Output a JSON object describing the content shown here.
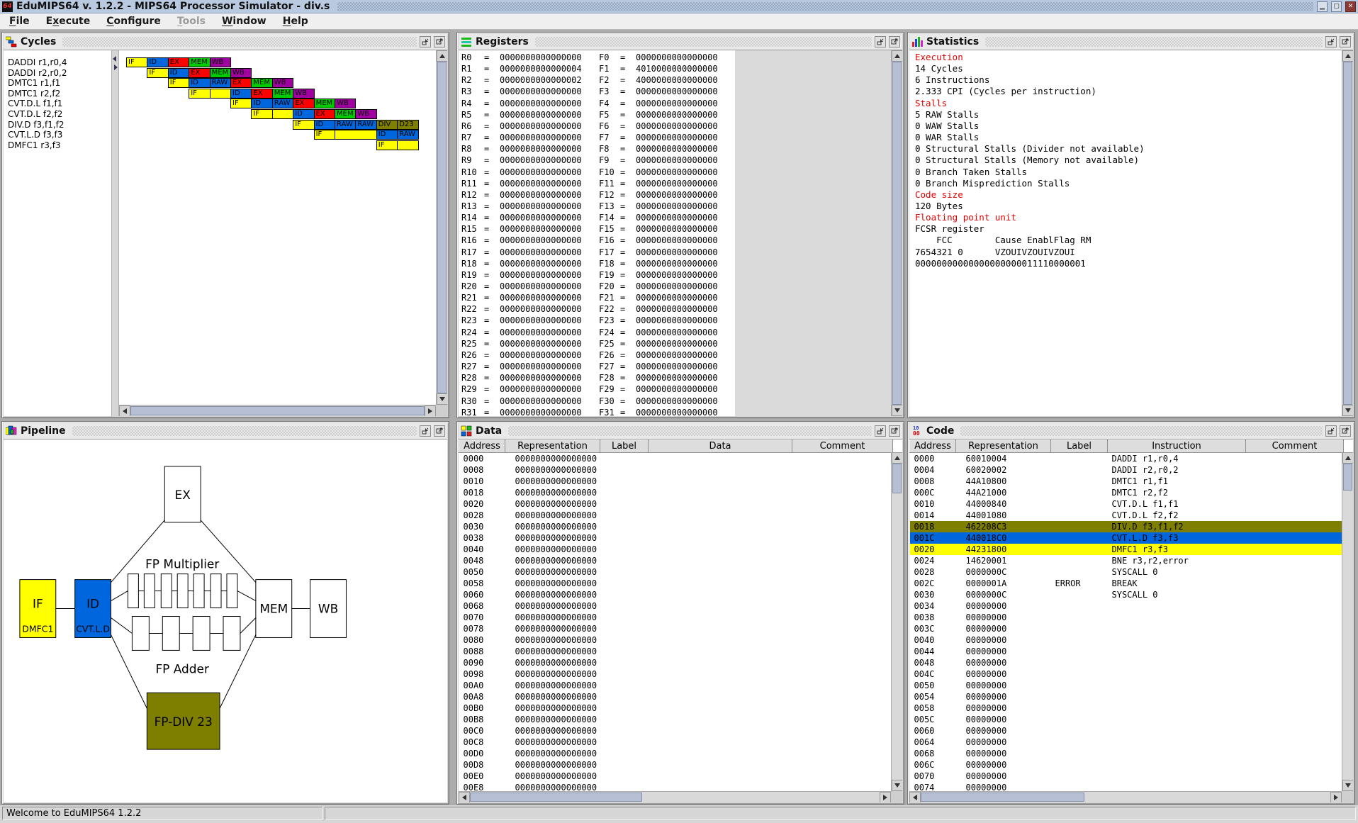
{
  "window": {
    "title": "EduMIPS64 v. 1.2.2 - MIPS64 Processor Simulator - div.s"
  },
  "menubar": {
    "items": [
      {
        "label": "File",
        "m": 0
      },
      {
        "label": "Execute",
        "m": 1
      },
      {
        "label": "Configure",
        "m": 0
      },
      {
        "label": "Tools",
        "m": 0,
        "disabled": true
      },
      {
        "label": "Window",
        "m": 0
      },
      {
        "label": "Help",
        "m": 0
      }
    ]
  },
  "cycles": {
    "title": "Cycles",
    "stage_colors": {
      "IF": "#FFFF00",
      "STALL": "#FFFF00",
      "ID": "#0066DD",
      "RAW": "#0066DD",
      "EX": "#FF0000",
      "MEM": "#00CC00",
      "WB": "#A000A0",
      "DIV": "#7E7E00",
      "D23": "#7E7E00"
    },
    "instructions": [
      {
        "label": "DADDI r1,r0,4",
        "cells": [
          {
            "c": 1,
            "s": "IF",
            "t": "IF"
          },
          {
            "c": 2,
            "s": "ID",
            "t": "ID"
          },
          {
            "c": 3,
            "s": "EX",
            "t": "EX"
          },
          {
            "c": 4,
            "s": "MEM",
            "t": "MEM"
          },
          {
            "c": 5,
            "s": "WB",
            "t": "WB"
          }
        ]
      },
      {
        "label": "DADDI r2,r0,2",
        "cells": [
          {
            "c": 2,
            "s": "IF",
            "t": "IF"
          },
          {
            "c": 3,
            "s": "ID",
            "t": "ID"
          },
          {
            "c": 4,
            "s": "EX",
            "t": "EX"
          },
          {
            "c": 5,
            "s": "MEM",
            "t": "MEM"
          },
          {
            "c": 6,
            "s": "WB",
            "t": "WB"
          }
        ]
      },
      {
        "label": "DMTC1 r1,f1",
        "cells": [
          {
            "c": 3,
            "s": "IF",
            "t": "IF"
          },
          {
            "c": 4,
            "s": "ID",
            "t": "ID"
          },
          {
            "c": 5,
            "s": "RAW",
            "t": "RAW"
          },
          {
            "c": 6,
            "s": "EX",
            "t": "EX"
          },
          {
            "c": 7,
            "s": "MEM",
            "t": "MEM"
          },
          {
            "c": 8,
            "s": "WB",
            "t": "WB"
          }
        ]
      },
      {
        "label": "DMTC1 r2,f2",
        "cells": [
          {
            "c": 4,
            "s": "IF",
            "t": "IF"
          },
          {
            "c": 5,
            "s": "STALL",
            "t": ""
          },
          {
            "c": 6,
            "s": "ID",
            "t": "ID"
          },
          {
            "c": 7,
            "s": "EX",
            "t": "EX"
          },
          {
            "c": 8,
            "s": "MEM",
            "t": "MEM"
          },
          {
            "c": 9,
            "s": "WB",
            "t": "WB"
          }
        ]
      },
      {
        "label": "CVT.D.L f1,f1",
        "cells": [
          {
            "c": 6,
            "s": "IF",
            "t": "IF"
          },
          {
            "c": 7,
            "s": "ID",
            "t": "ID"
          },
          {
            "c": 8,
            "s": "RAW",
            "t": "RAW"
          },
          {
            "c": 9,
            "s": "EX",
            "t": "EX"
          },
          {
            "c": 10,
            "s": "MEM",
            "t": "MEM"
          },
          {
            "c": 11,
            "s": "WB",
            "t": "WB"
          }
        ]
      },
      {
        "label": "CVT.D.L f2,f2",
        "cells": [
          {
            "c": 7,
            "s": "IF",
            "t": "IF"
          },
          {
            "c": 8,
            "s": "STALL",
            "t": ""
          },
          {
            "c": 9,
            "s": "ID",
            "t": "ID"
          },
          {
            "c": 10,
            "s": "EX",
            "t": "EX"
          },
          {
            "c": 11,
            "s": "MEM",
            "t": "MEM"
          },
          {
            "c": 12,
            "s": "WB",
            "t": "WB"
          }
        ]
      },
      {
        "label": "DIV.D f3,f1,f2",
        "cells": [
          {
            "c": 9,
            "s": "IF",
            "t": "IF"
          },
          {
            "c": 10,
            "s": "ID",
            "t": "ID"
          },
          {
            "c": 11,
            "s": "RAW",
            "t": "RAW"
          },
          {
            "c": 12,
            "s": "RAW",
            "t": "RAW"
          },
          {
            "c": 13,
            "s": "DIV",
            "t": "DIV"
          },
          {
            "c": 14,
            "s": "D23",
            "t": "D23"
          }
        ]
      },
      {
        "label": "CVT.L.D f3,f3",
        "cells": [
          {
            "c": 10,
            "s": "IF",
            "t": "IF"
          },
          {
            "c": 11,
            "s": "STALL",
            "t": "",
            "span": 2
          },
          {
            "c": 13,
            "s": "ID",
            "t": "ID"
          },
          {
            "c": 14,
            "s": "RAW",
            "t": "RAW"
          }
        ]
      },
      {
        "label": "DMFC1 r3,f3",
        "cells": [
          {
            "c": 13,
            "s": "IF",
            "t": "IF"
          },
          {
            "c": 14,
            "s": "STALL",
            "t": ""
          }
        ]
      }
    ]
  },
  "registers": {
    "title": "Registers",
    "eq": "=",
    "rows": [
      {
        "r": "R0",
        "rv": "0000000000000000",
        "f": "F0",
        "fv": "0000000000000000"
      },
      {
        "r": "R1",
        "rv": "0000000000000004",
        "f": "F1",
        "fv": "4010000000000000"
      },
      {
        "r": "R2",
        "rv": "0000000000000002",
        "f": "F2",
        "fv": "4000000000000000"
      },
      {
        "r": "R3",
        "rv": "0000000000000000",
        "f": "F3",
        "fv": "0000000000000000"
      },
      {
        "r": "R4",
        "rv": "0000000000000000",
        "f": "F4",
        "fv": "0000000000000000"
      },
      {
        "r": "R5",
        "rv": "0000000000000000",
        "f": "F5",
        "fv": "0000000000000000"
      },
      {
        "r": "R6",
        "rv": "0000000000000000",
        "f": "F6",
        "fv": "0000000000000000"
      },
      {
        "r": "R7",
        "rv": "0000000000000000",
        "f": "F7",
        "fv": "0000000000000000"
      },
      {
        "r": "R8",
        "rv": "0000000000000000",
        "f": "F8",
        "fv": "0000000000000000"
      },
      {
        "r": "R9",
        "rv": "0000000000000000",
        "f": "F9",
        "fv": "0000000000000000"
      },
      {
        "r": "R10",
        "rv": "0000000000000000",
        "f": "F10",
        "fv": "0000000000000000"
      },
      {
        "r": "R11",
        "rv": "0000000000000000",
        "f": "F11",
        "fv": "0000000000000000"
      },
      {
        "r": "R12",
        "rv": "0000000000000000",
        "f": "F12",
        "fv": "0000000000000000"
      },
      {
        "r": "R13",
        "rv": "0000000000000000",
        "f": "F13",
        "fv": "0000000000000000"
      },
      {
        "r": "R14",
        "rv": "0000000000000000",
        "f": "F14",
        "fv": "0000000000000000"
      },
      {
        "r": "R15",
        "rv": "0000000000000000",
        "f": "F15",
        "fv": "0000000000000000"
      },
      {
        "r": "R16",
        "rv": "0000000000000000",
        "f": "F16",
        "fv": "0000000000000000"
      },
      {
        "r": "R17",
        "rv": "0000000000000000",
        "f": "F17",
        "fv": "0000000000000000"
      },
      {
        "r": "R18",
        "rv": "0000000000000000",
        "f": "F18",
        "fv": "0000000000000000"
      },
      {
        "r": "R19",
        "rv": "0000000000000000",
        "f": "F19",
        "fv": "0000000000000000"
      },
      {
        "r": "R20",
        "rv": "0000000000000000",
        "f": "F20",
        "fv": "0000000000000000"
      },
      {
        "r": "R21",
        "rv": "0000000000000000",
        "f": "F21",
        "fv": "0000000000000000"
      },
      {
        "r": "R22",
        "rv": "0000000000000000",
        "f": "F22",
        "fv": "0000000000000000"
      },
      {
        "r": "R23",
        "rv": "0000000000000000",
        "f": "F23",
        "fv": "0000000000000000"
      },
      {
        "r": "R24",
        "rv": "0000000000000000",
        "f": "F24",
        "fv": "0000000000000000"
      },
      {
        "r": "R25",
        "rv": "0000000000000000",
        "f": "F25",
        "fv": "0000000000000000"
      },
      {
        "r": "R26",
        "rv": "0000000000000000",
        "f": "F26",
        "fv": "0000000000000000"
      },
      {
        "r": "R27",
        "rv": "0000000000000000",
        "f": "F27",
        "fv": "0000000000000000"
      },
      {
        "r": "R28",
        "rv": "0000000000000000",
        "f": "F28",
        "fv": "0000000000000000"
      },
      {
        "r": "R29",
        "rv": "0000000000000000",
        "f": "F29",
        "fv": "0000000000000000"
      },
      {
        "r": "R30",
        "rv": "0000000000000000",
        "f": "F30",
        "fv": "0000000000000000"
      },
      {
        "r": "R31",
        "rv": "0000000000000000",
        "f": "F31",
        "fv": "0000000000000000"
      }
    ]
  },
  "statistics": {
    "title": "Statistics",
    "lines": [
      {
        "text": "Execution",
        "red": true
      },
      {
        "text": "14 Cycles"
      },
      {
        "text": "6 Instructions"
      },
      {
        "text": "2.333 CPI (Cycles per instruction)"
      },
      {
        "text": "Stalls",
        "red": true
      },
      {
        "text": "5 RAW Stalls"
      },
      {
        "text": "0 WAW Stalls"
      },
      {
        "text": "0 WAR Stalls"
      },
      {
        "text": "0 Structural Stalls (Divider not available)"
      },
      {
        "text": "0 Structural Stalls (Memory not available)"
      },
      {
        "text": "0 Branch Taken Stalls"
      },
      {
        "text": "0 Branch Misprediction Stalls"
      },
      {
        "text": "Code size",
        "red": true
      },
      {
        "text": "120 Bytes"
      },
      {
        "text": "Floating point unit",
        "red": true
      },
      {
        "text": "FCSR register"
      },
      {
        "text": "    FCC        Cause EnablFlag RM"
      },
      {
        "text": "7654321 0      VZOUIVZOUIVZOUI"
      },
      {
        "text": "00000000000000000000011110000001"
      }
    ]
  },
  "pipeline": {
    "title": "Pipeline",
    "boxes": {
      "if": "IF",
      "id": "ID",
      "ex": "EX",
      "mem": "MEM",
      "wb": "WB",
      "fp_multiplier": "FP Multiplier",
      "fp_adder": "FP Adder",
      "fp_div": "FP-DIV 23",
      "if_instruction": "DMFC1",
      "id_instruction": "CVT.L.D"
    },
    "colors": {
      "if": "#FFFF00",
      "id": "#0066DD",
      "fp_div": "#7E7E00",
      "plain": "#FFFFFF"
    }
  },
  "data_window": {
    "title": "Data",
    "headers": [
      "Address",
      "Representation",
      "Label",
      "Data",
      "Comment"
    ],
    "rows": [
      {
        "a": "0000",
        "r": "0000000000000000"
      },
      {
        "a": "0008",
        "r": "0000000000000000"
      },
      {
        "a": "0010",
        "r": "0000000000000000"
      },
      {
        "a": "0018",
        "r": "0000000000000000"
      },
      {
        "a": "0020",
        "r": "0000000000000000"
      },
      {
        "a": "0028",
        "r": "0000000000000000"
      },
      {
        "a": "0030",
        "r": "0000000000000000"
      },
      {
        "a": "0038",
        "r": "0000000000000000"
      },
      {
        "a": "0040",
        "r": "0000000000000000"
      },
      {
        "a": "0048",
        "r": "0000000000000000"
      },
      {
        "a": "0050",
        "r": "0000000000000000"
      },
      {
        "a": "0058",
        "r": "0000000000000000"
      },
      {
        "a": "0060",
        "r": "0000000000000000"
      },
      {
        "a": "0068",
        "r": "0000000000000000"
      },
      {
        "a": "0070",
        "r": "0000000000000000"
      },
      {
        "a": "0078",
        "r": "0000000000000000"
      },
      {
        "a": "0080",
        "r": "0000000000000000"
      },
      {
        "a": "0088",
        "r": "0000000000000000"
      },
      {
        "a": "0090",
        "r": "0000000000000000"
      },
      {
        "a": "0098",
        "r": "0000000000000000"
      },
      {
        "a": "00A0",
        "r": "0000000000000000"
      },
      {
        "a": "00A8",
        "r": "0000000000000000"
      },
      {
        "a": "00B0",
        "r": "0000000000000000"
      },
      {
        "a": "00B8",
        "r": "0000000000000000"
      },
      {
        "a": "00C0",
        "r": "0000000000000000"
      },
      {
        "a": "00C8",
        "r": "0000000000000000"
      },
      {
        "a": "00D0",
        "r": "0000000000000000"
      },
      {
        "a": "00D8",
        "r": "0000000000000000"
      },
      {
        "a": "00E0",
        "r": "0000000000000000"
      },
      {
        "a": "00E8",
        "r": "0000000000000000"
      }
    ]
  },
  "code_window": {
    "title": "Code",
    "headers": [
      "Address",
      "Representation",
      "Label",
      "Instruction",
      "Comment"
    ],
    "highlight_colors": {
      "olive": "#7E7E00",
      "blue": "#0066DD",
      "yellow": "#FFFF00"
    },
    "rows": [
      {
        "a": "0000",
        "r": "60010004",
        "l": "",
        "i": "DADDI r1,r0,4",
        "c": "",
        "hl": ""
      },
      {
        "a": "0004",
        "r": "60020002",
        "l": "",
        "i": "DADDI r2,r0,2",
        "c": "",
        "hl": ""
      },
      {
        "a": "0008",
        "r": "44A10800",
        "l": "",
        "i": "DMTC1 r1,f1",
        "c": "",
        "hl": ""
      },
      {
        "a": "000C",
        "r": "44A21000",
        "l": "",
        "i": "DMTC1 r2,f2",
        "c": "",
        "hl": ""
      },
      {
        "a": "0010",
        "r": "44000840",
        "l": "",
        "i": "CVT.D.L f1,f1",
        "c": "",
        "hl": ""
      },
      {
        "a": "0014",
        "r": "44001080",
        "l": "",
        "i": "CVT.D.L f2,f2",
        "c": "",
        "hl": ""
      },
      {
        "a": "0018",
        "r": "462208C3",
        "l": "",
        "i": "DIV.D f3,f1,f2",
        "c": "",
        "hl": "olive"
      },
      {
        "a": "001C",
        "r": "440018C0",
        "l": "",
        "i": "CVT.L.D f3,f3",
        "c": "",
        "hl": "blue"
      },
      {
        "a": "0020",
        "r": "44231800",
        "l": "",
        "i": "DMFC1 r3,f3",
        "c": "",
        "hl": "yellow"
      },
      {
        "a": "0024",
        "r": "14620001",
        "l": "",
        "i": "BNE r3,r2,error",
        "c": "",
        "hl": ""
      },
      {
        "a": "0028",
        "r": "0000000C",
        "l": "",
        "i": "SYSCALL 0",
        "c": "",
        "hl": ""
      },
      {
        "a": "002C",
        "r": "0000001A",
        "l": "ERROR",
        "i": "BREAK",
        "c": "",
        "hl": ""
      },
      {
        "a": "0030",
        "r": "0000000C",
        "l": "",
        "i": "SYSCALL 0",
        "c": "",
        "hl": ""
      },
      {
        "a": "0034",
        "r": "00000000",
        "l": "",
        "i": "",
        "c": "",
        "hl": ""
      },
      {
        "a": "0038",
        "r": "00000000",
        "l": "",
        "i": "",
        "c": "",
        "hl": ""
      },
      {
        "a": "003C",
        "r": "00000000",
        "l": "",
        "i": "",
        "c": "",
        "hl": ""
      },
      {
        "a": "0040",
        "r": "00000000",
        "l": "",
        "i": "",
        "c": "",
        "hl": ""
      },
      {
        "a": "0044",
        "r": "00000000",
        "l": "",
        "i": "",
        "c": "",
        "hl": ""
      },
      {
        "a": "0048",
        "r": "00000000",
        "l": "",
        "i": "",
        "c": "",
        "hl": ""
      },
      {
        "a": "004C",
        "r": "00000000",
        "l": "",
        "i": "",
        "c": "",
        "hl": ""
      },
      {
        "a": "0050",
        "r": "00000000",
        "l": "",
        "i": "",
        "c": "",
        "hl": ""
      },
      {
        "a": "0054",
        "r": "00000000",
        "l": "",
        "i": "",
        "c": "",
        "hl": ""
      },
      {
        "a": "0058",
        "r": "00000000",
        "l": "",
        "i": "",
        "c": "",
        "hl": ""
      },
      {
        "a": "005C",
        "r": "00000000",
        "l": "",
        "i": "",
        "c": "",
        "hl": ""
      },
      {
        "a": "0060",
        "r": "00000000",
        "l": "",
        "i": "",
        "c": "",
        "hl": ""
      },
      {
        "a": "0064",
        "r": "00000000",
        "l": "",
        "i": "",
        "c": "",
        "hl": ""
      },
      {
        "a": "0068",
        "r": "00000000",
        "l": "",
        "i": "",
        "c": "",
        "hl": ""
      },
      {
        "a": "006C",
        "r": "00000000",
        "l": "",
        "i": "",
        "c": "",
        "hl": ""
      },
      {
        "a": "0070",
        "r": "00000000",
        "l": "",
        "i": "",
        "c": "",
        "hl": ""
      },
      {
        "a": "0074",
        "r": "00000000",
        "l": "",
        "i": "",
        "c": "",
        "hl": ""
      }
    ]
  },
  "statusbar": {
    "text": "Welcome to EduMIPS64 1.2.2"
  }
}
